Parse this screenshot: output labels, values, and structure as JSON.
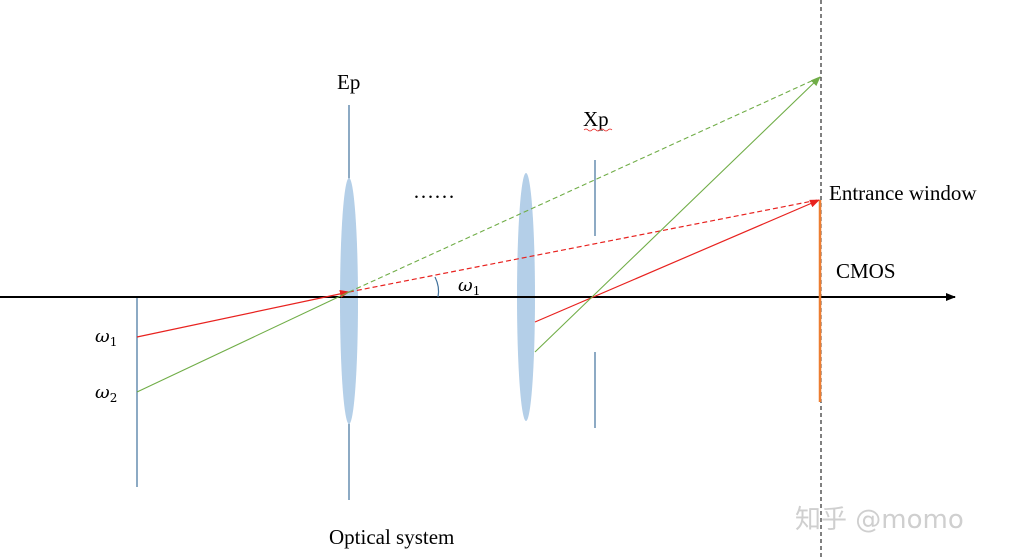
{
  "labels": {
    "entrance_pupil": "Ep",
    "exit_pupil": "Xp",
    "ellipsis": "……",
    "entrance_window": "Entrance window",
    "sensor": "CMOS",
    "angle_marker": "ω",
    "angle_marker_sub": "1",
    "field_1": "ω",
    "field_1_sub": "1",
    "field_2": "ω",
    "field_2_sub": "2",
    "caption": "Optical system"
  },
  "watermark": "知乎 @momo",
  "colors": {
    "axis": "#000000",
    "lens": "#b4cfe8",
    "stop": "#41719c",
    "ray_1": "#e8221f",
    "ray_2": "#70ad47",
    "sensor": "#ed7d31"
  }
}
